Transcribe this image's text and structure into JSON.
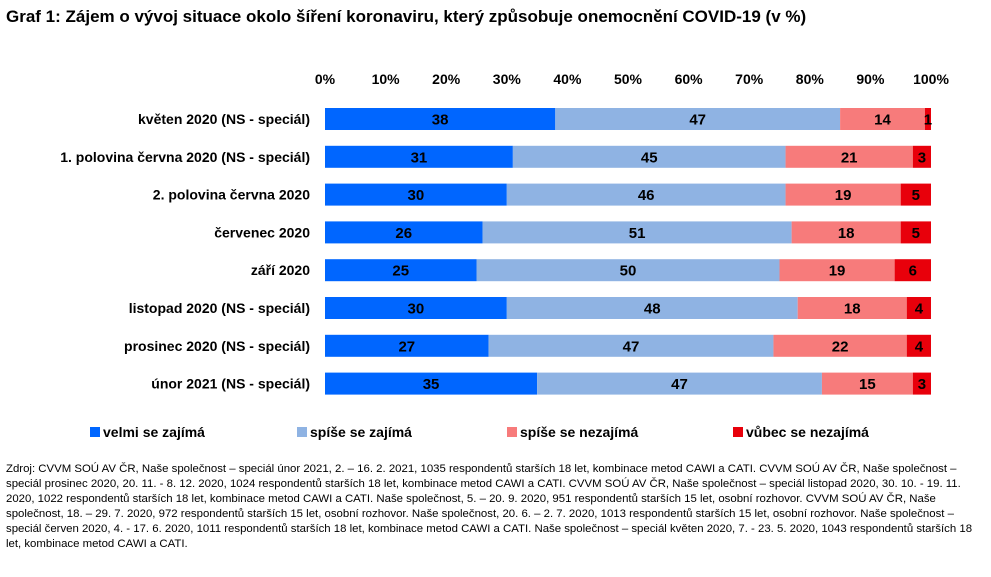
{
  "title": "Graf 1: Zájem o vývoj situace okolo šíření koronaviru, který způsobuje onemocnění COVID-19 (v %)",
  "source": "Zdroj: CVVM SOÚ AV ČR, Naše společnost – speciál únor 2021, 2. – 16. 2. 2021, 1035 respondentů starších 18 let, kombinace metod CAWI a CATI. CVVM SOÚ AV ČR, Naše společnost – speciál prosinec 2020, 20. 11. - 8. 12. 2020, 1024 respondentů starších 18 let, kombinace metod CAWI a CATI. CVVM SOÚ AV ČR, Naše společnost – speciál listopad 2020, 30. 10. - 19. 11. 2020, 1022 respondentů starších 18 let, kombinace metod CAWI a CATI. Naše společnost, 5. – 20. 9. 2020, 951 respondentů starších 15 let, osobní rozhovor. CVVM SOÚ AV ČR, Naše společnost, 18. – 29. 7. 2020, 972 respondentů starších 15 let, osobní rozhovor. Naše společnost, 20. 6. – 2. 7. 2020, 1013 respondentů starších 15 let, osobní rozhovor. Naše společnost – speciál červen 2020, 4. - 17. 6. 2020, 1011 respondentů starších 18 let, kombinace metod CAWI a CATI. Naše společnost – speciál květen 2020, 7. - 23. 5. 2020, 1043 respondentů starších 18 let, kombinace metod CAWI a CATI.",
  "chart_data": {
    "type": "bar",
    "orientation": "horizontal",
    "stacked": "percent",
    "xlim": [
      0,
      100
    ],
    "x_ticks": [
      "0%",
      "10%",
      "20%",
      "30%",
      "40%",
      "50%",
      "60%",
      "70%",
      "80%",
      "90%",
      "100%"
    ],
    "x_axis_position": "top",
    "grid": false,
    "legend_position": "bottom",
    "categories": [
      "květen 2020 (NS - speciál)",
      "1. polovina června 2020 (NS - speciál)",
      "2. polovina června 2020",
      "červenec 2020",
      "září 2020",
      "listopad 2020 (NS - speciál)",
      "prosinec 2020 (NS - speciál)",
      "únor 2021 (NS - speciál)"
    ],
    "series": [
      {
        "name": "velmi se zajímá",
        "color": "#0066ff",
        "values": [
          38,
          31,
          30,
          26,
          25,
          30,
          27,
          35
        ]
      },
      {
        "name": "spíše se zajímá",
        "color": "#8fb3e3",
        "values": [
          47,
          45,
          46,
          51,
          50,
          48,
          47,
          47
        ]
      },
      {
        "name": "spíše se nezajímá",
        "color": "#f77b7b",
        "values": [
          14,
          21,
          19,
          18,
          19,
          18,
          22,
          15
        ]
      },
      {
        "name": "vůbec se nezajímá",
        "color": "#e8000b",
        "values": [
          1,
          3,
          5,
          5,
          6,
          4,
          4,
          3
        ]
      }
    ]
  }
}
